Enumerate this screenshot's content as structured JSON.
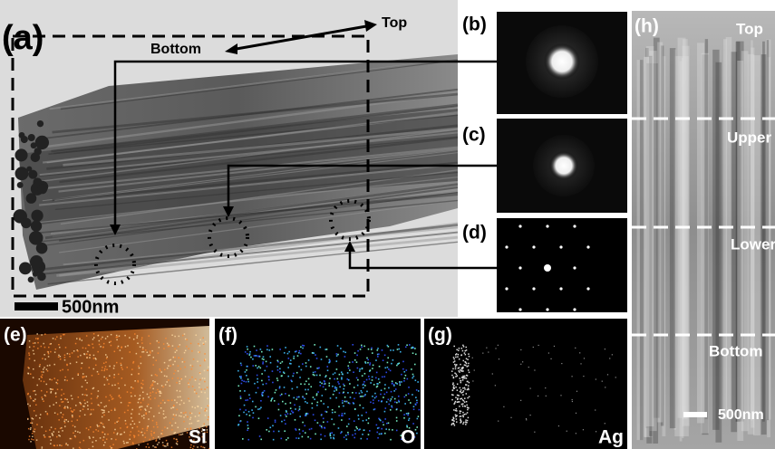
{
  "panels": {
    "a": {
      "label": "(a)",
      "top": "Top",
      "bottom": "Bottom",
      "scale": "500nm"
    },
    "b": {
      "label": "(b)"
    },
    "c": {
      "label": "(c)"
    },
    "d": {
      "label": "(d)"
    },
    "e": {
      "label": "(e)",
      "element": "Si"
    },
    "f": {
      "label": "(f)",
      "element": "O"
    },
    "g": {
      "label": "(g)",
      "element": "Ag"
    },
    "h": {
      "label": "(h)",
      "regions": [
        "Top",
        "Upper",
        "Lower",
        "Bottom"
      ],
      "scale": "500nm"
    }
  }
}
